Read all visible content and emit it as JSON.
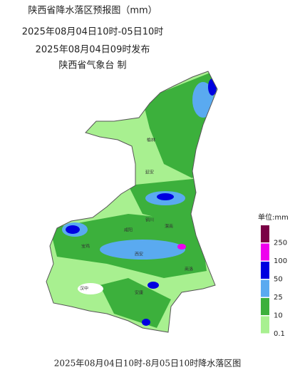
{
  "header": {
    "title": "陕西省降水落区预报图（mm）",
    "time_range": "2025年08月04日10时-05日10时",
    "issued": "2025年08月04日09时发布",
    "issuer": "陕西省气象台 制"
  },
  "cities": [
    {
      "name": "榆林"
    },
    {
      "name": "延安"
    },
    {
      "name": "铜川"
    },
    {
      "name": "咸阳"
    },
    {
      "name": "渭南"
    },
    {
      "name": "宝鸡"
    },
    {
      "name": "西安"
    },
    {
      "name": "商洛"
    },
    {
      "name": "汉中"
    },
    {
      "name": "安康"
    }
  ],
  "legend": {
    "unit": "单位:mm",
    "levels": [
      0.1,
      10,
      25,
      50,
      100,
      250
    ],
    "colors": [
      "#a8f090",
      "#3cb03c",
      "#5aaaf0",
      "#0000e0",
      "#ee00ee",
      "#7a0045"
    ]
  },
  "caption": "2025年08月04日10时-8月05日10时降水落区图"
}
